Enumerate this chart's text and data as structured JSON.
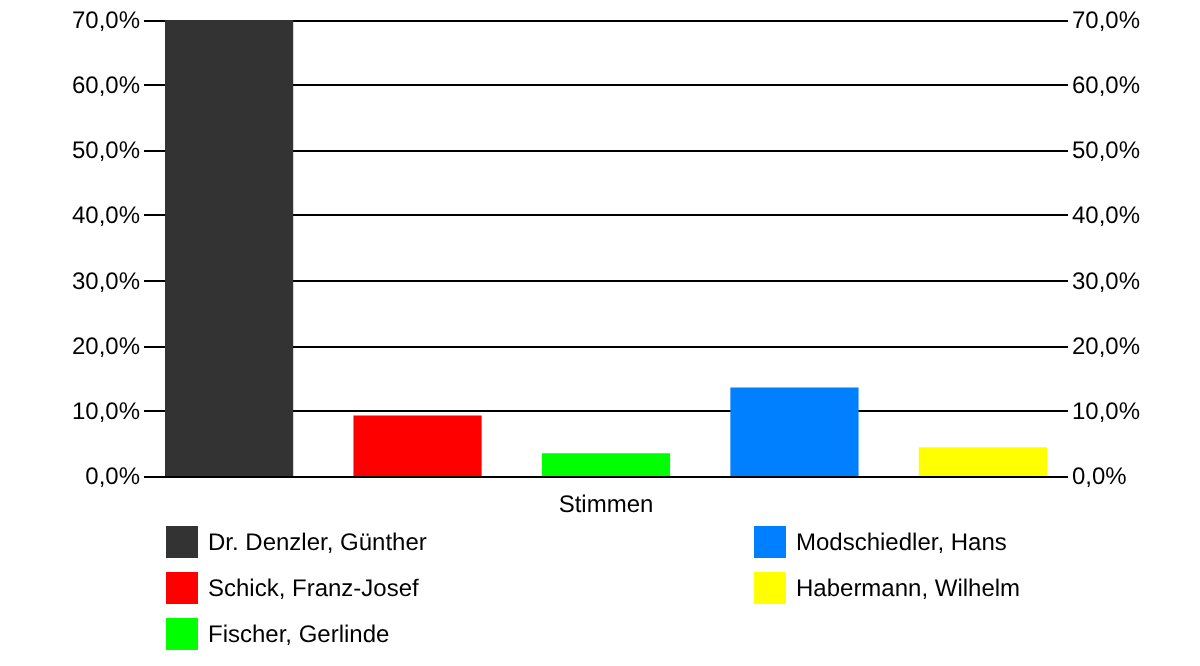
{
  "chart_data": {
    "type": "bar",
    "categories": [
      "Stimmen"
    ],
    "series": [
      {
        "name": "Dr. Denzler, Günther",
        "color": "#333333",
        "values": [
          70
        ]
      },
      {
        "name": "Schick, Franz-Josef",
        "color": "#ff0000",
        "values": [
          9.3
        ]
      },
      {
        "name": "Fischer, Gerlinde",
        "color": "#00ff00",
        "values": [
          3.5
        ]
      },
      {
        "name": "Modschiedler, Hans",
        "color": "#0080ff",
        "values": [
          13.6
        ]
      },
      {
        "name": "Habermann, Wilhelm",
        "color": "#ffff00",
        "values": [
          4.4
        ]
      }
    ],
    "ylim": [
      0,
      70
    ],
    "yticks": [
      {
        "value": 0,
        "label": "0,0%"
      },
      {
        "value": 10,
        "label": "10,0%"
      },
      {
        "value": 20,
        "label": "20,0%"
      },
      {
        "value": 30,
        "label": "30,0%"
      },
      {
        "value": 40,
        "label": "40,0%"
      },
      {
        "value": 50,
        "label": "50,0%"
      },
      {
        "value": 60,
        "label": "60,0%"
      },
      {
        "value": 70,
        "label": "70,0%"
      }
    ],
    "grid": "y",
    "legend": "bottom"
  }
}
